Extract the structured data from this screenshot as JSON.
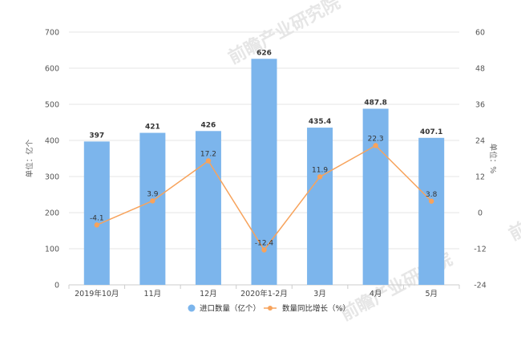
{
  "chart_data": {
    "type": "bar",
    "categories": [
      "2019年10月",
      "11月",
      "12月",
      "2020年1-2月",
      "3月",
      "4月",
      "5月"
    ],
    "series": [
      {
        "name": "进口数量（亿个）",
        "type": "bar",
        "axis": "left",
        "values": [
          397,
          421,
          426,
          626,
          435.4,
          487.8,
          407.1
        ],
        "labels": [
          "397",
          "421",
          "426",
          "626",
          "435.4",
          "487.8",
          "407.1"
        ]
      },
      {
        "name": "数量同比增长（%）",
        "type": "line",
        "axis": "right",
        "values": [
          -4.1,
          3.9,
          17.2,
          -12.4,
          11.9,
          22.3,
          3.8
        ],
        "labels": [
          "-4.1",
          "3.9",
          "17.2",
          "-12.4",
          "11.9",
          "22.3",
          "3.8"
        ]
      }
    ],
    "y_left": {
      "label": "单位：亿个",
      "ylim": [
        0,
        700
      ],
      "ticks": [
        "0",
        "100",
        "200",
        "300",
        "400",
        "500",
        "600",
        "700"
      ]
    },
    "y_right": {
      "label": "单位：%",
      "ylim": [
        -24,
        60
      ],
      "ticks": [
        "-24",
        "-12",
        "0",
        "12",
        "24",
        "36",
        "48",
        "60"
      ]
    },
    "grid": true,
    "legend_position": "bottom",
    "colors": {
      "bar": "#7cb5ec",
      "line": "#f7a35c",
      "grid": "#e6e6e6"
    },
    "watermark": "前瞻产业研究院"
  }
}
